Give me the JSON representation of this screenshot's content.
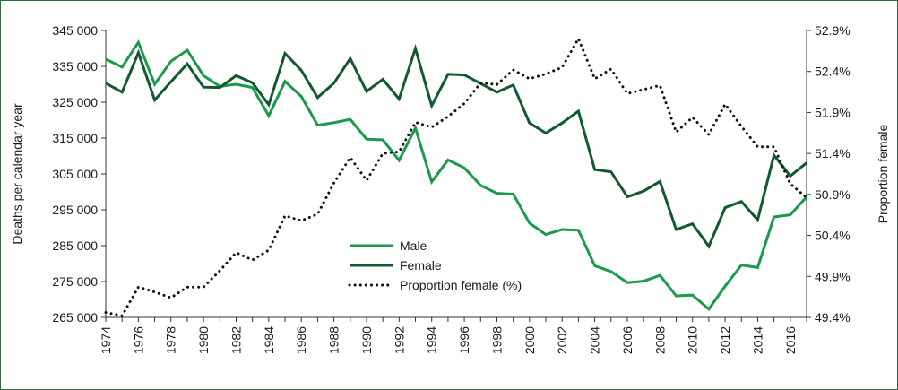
{
  "chart_data": {
    "type": "line",
    "x": [
      1974,
      1975,
      1976,
      1977,
      1978,
      1979,
      1980,
      1981,
      1982,
      1983,
      1984,
      1985,
      1986,
      1987,
      1988,
      1989,
      1990,
      1991,
      1992,
      1993,
      1994,
      1995,
      1996,
      1997,
      1998,
      1999,
      2000,
      2001,
      2002,
      2003,
      2004,
      2005,
      2006,
      2007,
      2008,
      2009,
      2010,
      2011,
      2012,
      2013,
      2014,
      2015,
      2016,
      2017
    ],
    "x_tick_labels": [
      "1974",
      "1976",
      "1978",
      "1980",
      "1982",
      "1984",
      "1986",
      "1988",
      "1990",
      "1992",
      "1994",
      "1996",
      "1998",
      "2000",
      "2002",
      "2004",
      "2006",
      "2008",
      "2010",
      "2012",
      "2014",
      "2016"
    ],
    "xlim": [
      1974,
      2017
    ],
    "ylabel": "Deaths per calendar year",
    "ylim": [
      265000,
      345000
    ],
    "y_tick_labels": [
      "345 000",
      "335 000",
      "325 000",
      "315 000",
      "305 000",
      "295 000",
      "285 000",
      "275 000",
      "265 000"
    ],
    "y_ticks": [
      345000,
      335000,
      325000,
      315000,
      305000,
      295000,
      285000,
      275000,
      265000
    ],
    "y2label": "Proportion female",
    "y2lim": [
      49.4,
      52.9
    ],
    "y2_tick_labels": [
      "52.9%",
      "52.4%",
      "51.9%",
      "51.4%",
      "50.9%",
      "50.4%",
      "49.9%",
      "49.4%"
    ],
    "y2_ticks": [
      52.9,
      52.4,
      51.9,
      51.4,
      50.9,
      50.4,
      49.9,
      49.4
    ],
    "grid": false,
    "legend_position": "center",
    "series": [
      {
        "name": "Male",
        "axis": "left",
        "color": "#1a9a4a",
        "style": "solid",
        "values": [
          337000,
          334800,
          341700,
          330000,
          336400,
          339500,
          332400,
          329400,
          330000,
          329100,
          321200,
          330800,
          326600,
          318600,
          319300,
          320200,
          314700,
          314500,
          308800,
          317800,
          302800,
          308900,
          306700,
          301800,
          299600,
          299400,
          291300,
          288100,
          289500,
          289300,
          279400,
          277800,
          274700,
          275100,
          276700,
          271000,
          271200,
          267300,
          273700,
          279600,
          278900,
          293000,
          293600,
          298600
        ]
      },
      {
        "name": "Female",
        "axis": "left",
        "color": "#125a2e",
        "style": "solid",
        "values": [
          330300,
          327800,
          338800,
          325600,
          330700,
          335700,
          329200,
          329100,
          332400,
          330400,
          324300,
          338600,
          333900,
          326300,
          330300,
          337200,
          328000,
          331400,
          325900,
          340000,
          324000,
          332800,
          332600,
          330200,
          327800,
          329800,
          319200,
          316400,
          319200,
          322500,
          306200,
          305600,
          298600,
          300200,
          302900,
          289500,
          291100,
          284800,
          295600,
          297300,
          292200,
          310200,
          304400,
          308100
        ]
      },
      {
        "name": "Proportion female (%)",
        "axis": "right",
        "color": "#111111",
        "style": "dotted",
        "values": [
          49.46,
          49.42,
          49.77,
          49.71,
          49.64,
          49.77,
          49.77,
          49.97,
          50.19,
          50.1,
          50.22,
          50.64,
          50.58,
          50.66,
          51.04,
          51.35,
          51.07,
          51.4,
          51.42,
          51.78,
          51.72,
          51.85,
          52.01,
          52.26,
          52.24,
          52.42,
          52.31,
          52.37,
          52.45,
          52.8,
          52.31,
          52.43,
          52.13,
          52.18,
          52.23,
          51.66,
          51.84,
          51.63,
          52.0,
          51.73,
          51.48,
          51.48,
          51.03,
          50.86
        ]
      }
    ]
  }
}
